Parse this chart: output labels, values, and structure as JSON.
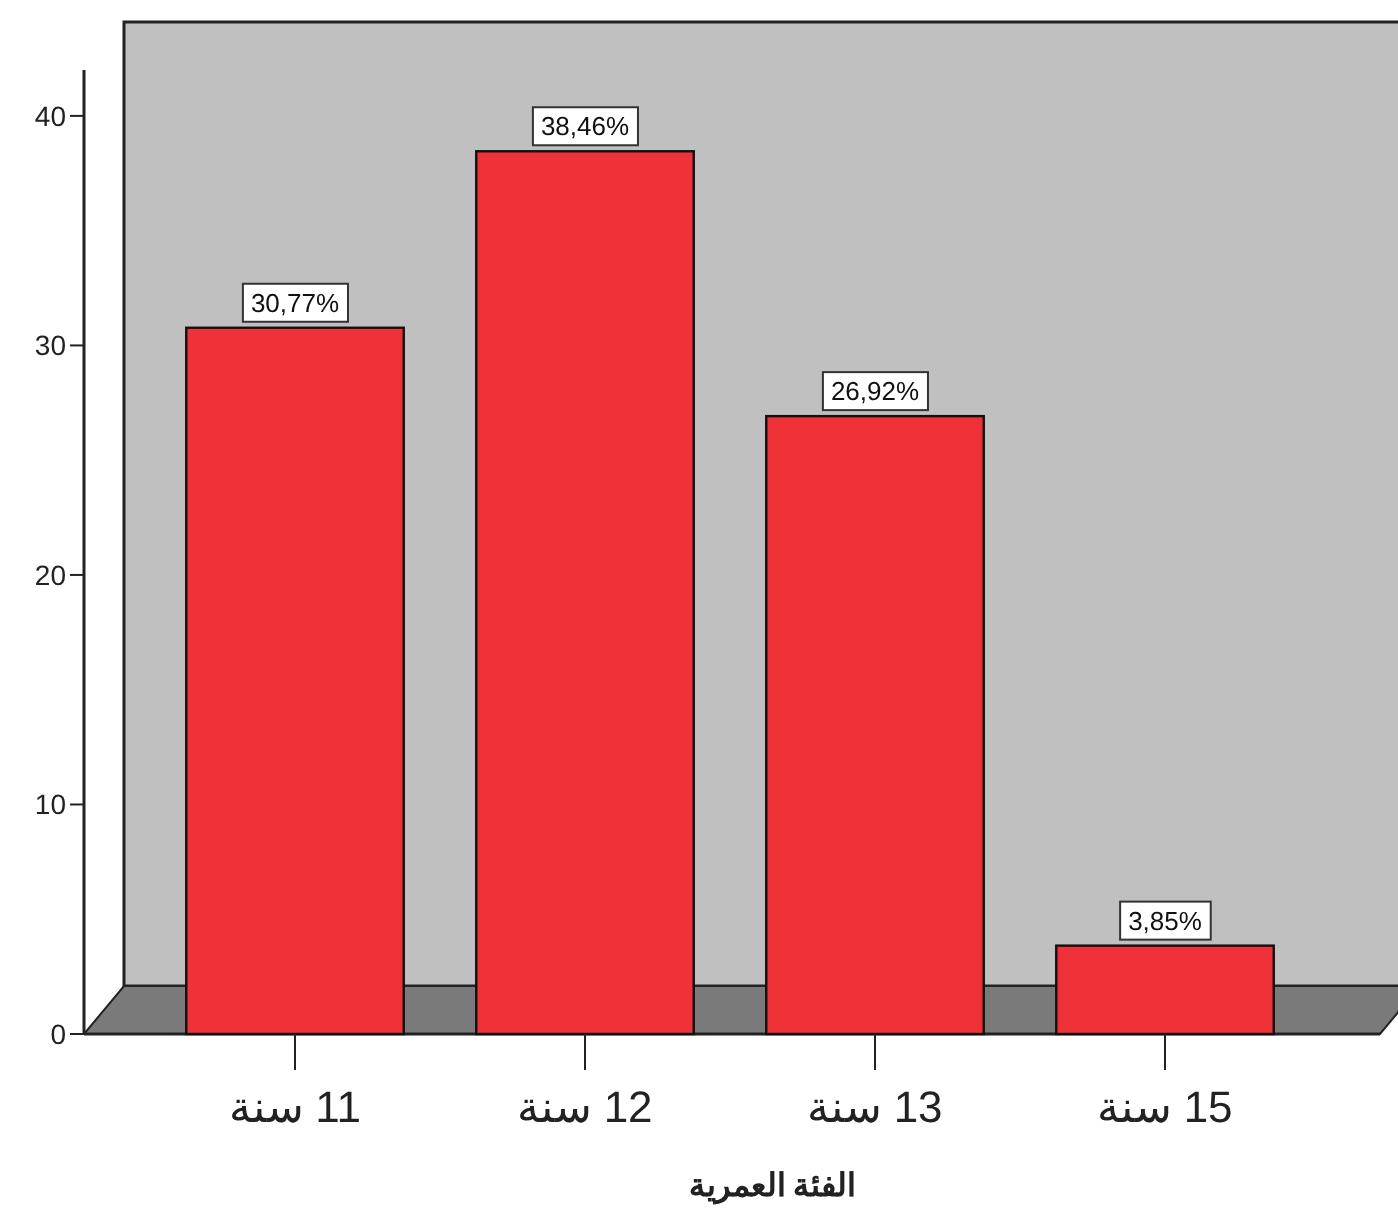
{
  "chart_data": {
    "type": "bar",
    "xlabel": "الفئة العمرية",
    "categories": [
      "11 سنة",
      "12 سنة",
      "13 سنة",
      "15 سنة"
    ],
    "values": [
      30.77,
      38.46,
      26.92,
      3.85
    ],
    "value_labels": [
      "30,77%",
      "38,46%",
      "26,92%",
      "3,85%"
    ],
    "color": "#ee3237",
    "ylim": [
      0,
      42
    ],
    "yticks": [
      0,
      10,
      20,
      30,
      40
    ],
    "grid": false
  }
}
